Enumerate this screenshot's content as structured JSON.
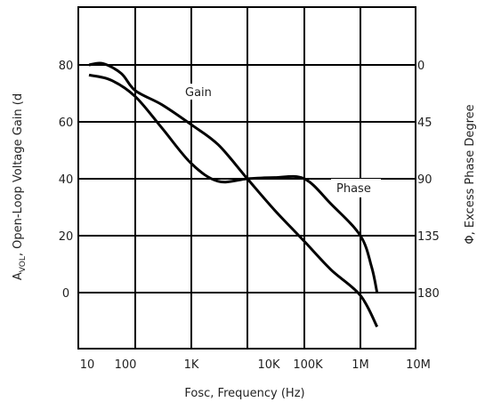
{
  "chart_data": {
    "type": "line",
    "xlabel": "Fosc, Frequency (Hz)",
    "ylabel_left": "A_VOL, Open-Loop Voltage Gain (d",
    "ylabel_left_main": "A",
    "ylabel_left_sub": "VOL",
    "ylabel_left_rest": ", Open-Loop Voltage Gain (d",
    "ylabel_right": "Φ, Excess Phase Degree",
    "x_ticks": [
      "10",
      "100",
      "1K",
      "10K",
      "100K",
      "1M",
      "10M"
    ],
    "y_left_ticks": [
      "80",
      "60",
      "40",
      "20",
      "0"
    ],
    "y_left_tick_values": [
      80,
      60,
      40,
      20,
      0
    ],
    "y_right_ticks": [
      "0",
      "45",
      "90",
      "135",
      "180"
    ],
    "y_right_tick_values": [
      0,
      45,
      90,
      135,
      180
    ],
    "ylim_left": [
      -20,
      100
    ],
    "ylim_right": [
      225,
      -45
    ],
    "grid": true,
    "series": [
      {
        "name": "Gain",
        "axis": "left",
        "x": [
          10,
          20,
          50,
          100,
          300,
          1000,
          3000,
          10000,
          30000,
          100000,
          300000,
          1000000,
          2000000
        ],
        "y": [
          80,
          80.5,
          77,
          71,
          66,
          59,
          52,
          40,
          29,
          18,
          8,
          -1,
          -12
        ],
        "label": "Gain",
        "color": "#000000"
      },
      {
        "name": "Phase",
        "axis": "right",
        "x": [
          10,
          30,
          100,
          300,
          1000,
          3000,
          10000,
          30000,
          100000,
          300000,
          1000000,
          1600000,
          2000000
        ],
        "y": [
          8,
          12,
          25,
          50,
          78,
          92,
          90,
          89,
          90,
          110,
          135,
          160,
          180
        ],
        "label": "Phase",
        "color": "#000000"
      }
    ]
  }
}
